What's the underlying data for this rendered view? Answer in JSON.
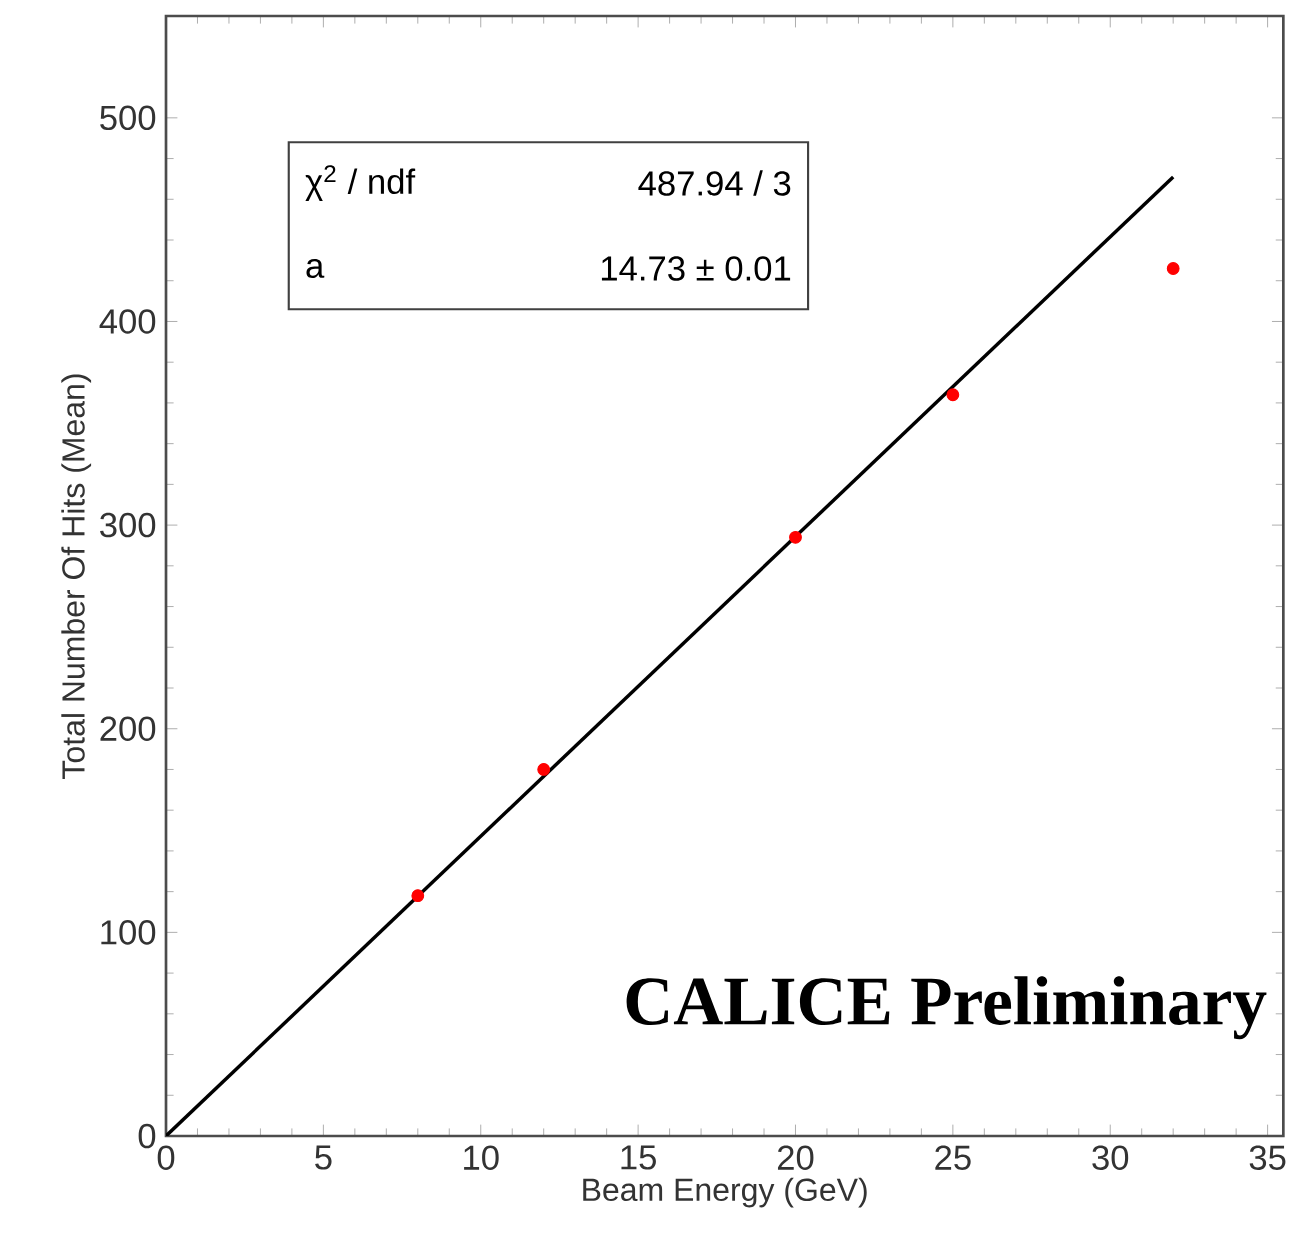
{
  "chart_data": {
    "type": "scatter",
    "xlabel": "Beam Energy (GeV)",
    "ylabel": "Total Number Of Hits (Mean)",
    "series": [
      {
        "color": "#ff0000",
        "marker": "circle",
        "x": [
          8,
          12,
          20,
          25,
          32
        ],
        "values": [
          118,
          180,
          294,
          364,
          426
        ]
      },
      {
        "type": "line",
        "color": "#000000",
        "marker": "none",
        "x": [
          0,
          32
        ],
        "values": [
          0,
          471
        ]
      }
    ],
    "annotations": [
      "χ$^{2}$ / ndf",
      "487.94 / 3",
      "a",
      "14.73 ± 0.01",
      "CALICE Preliminary"
    ],
    "xlim": [
      0,
      35.5
    ],
    "ylim": [
      0,
      550
    ],
    "xticks": [
      0,
      5,
      10,
      15,
      20,
      25,
      30,
      35
    ],
    "yticks": [
      0,
      100,
      200,
      300,
      400,
      500
    ],
    "grid": false
  }
}
